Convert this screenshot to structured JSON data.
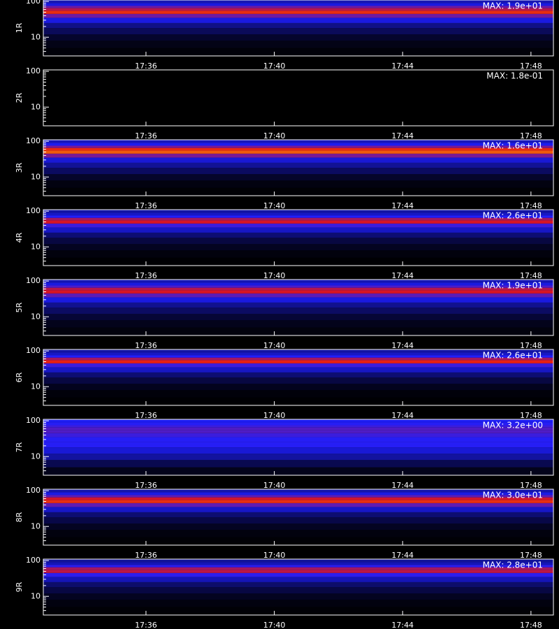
{
  "chart_data": [
    {
      "type": "heatmap",
      "ylabel": "1R",
      "max": {
        "value": 19,
        "label": "MAX: 1.9e+01"
      },
      "log_y": true,
      "bins": [
        3,
        5,
        8,
        12,
        18,
        25,
        35,
        45,
        55,
        65,
        75,
        90,
        110
      ],
      "counts": [
        0.2,
        0.5,
        1,
        2,
        3,
        5,
        8,
        12,
        10,
        8,
        5,
        4
      ],
      "ylim": [
        3,
        110
      ],
      "yticks": [
        10,
        100
      ],
      "yminorticks": [
        4,
        5,
        6,
        7,
        8,
        9,
        20,
        30,
        40,
        50,
        60,
        70,
        80,
        90
      ],
      "xlim": [
        1052.8,
        1068.7
      ],
      "xticks": [
        {
          "value": 1056,
          "label": "17:36"
        },
        {
          "value": 1060,
          "label": "17:40"
        },
        {
          "value": 1064,
          "label": "17:44"
        },
        {
          "value": 1068,
          "label": "17:48"
        }
      ]
    },
    {
      "type": "heatmap",
      "ylabel": "2R",
      "max": {
        "value": 0.18,
        "label": "MAX: 1.8e-01"
      },
      "log_y": true,
      "bins": [
        3,
        5,
        8,
        12,
        18,
        25,
        35,
        45,
        55,
        65,
        75,
        90,
        110
      ],
      "counts": [
        0,
        0,
        0,
        0,
        0,
        0,
        0,
        0,
        0,
        0,
        0,
        0
      ],
      "ylim": [
        3,
        110
      ],
      "yticks": [
        10,
        100
      ],
      "yminorticks": [
        4,
        5,
        6,
        7,
        8,
        9,
        20,
        30,
        40,
        50,
        60,
        70,
        80,
        90
      ],
      "xlim": [
        1052.8,
        1068.7
      ],
      "xticks": [
        {
          "value": 1056,
          "label": "17:36"
        },
        {
          "value": 1060,
          "label": "17:40"
        },
        {
          "value": 1064,
          "label": "17:44"
        },
        {
          "value": 1068,
          "label": "17:48"
        }
      ]
    },
    {
      "type": "heatmap",
      "ylabel": "3R",
      "max": {
        "value": 16,
        "label": "MAX: 1.6e+01"
      },
      "log_y": true,
      "bins": [
        3,
        5,
        8,
        12,
        18,
        25,
        35,
        45,
        55,
        65,
        75,
        90,
        110
      ],
      "counts": [
        0.1,
        0.3,
        0.8,
        1.8,
        2.8,
        4,
        7,
        11,
        10,
        7,
        4.5,
        3.5
      ],
      "ylim": [
        3,
        110
      ],
      "yticks": [
        10,
        100
      ],
      "yminorticks": [
        4,
        5,
        6,
        7,
        8,
        9,
        20,
        30,
        40,
        50,
        60,
        70,
        80,
        90
      ],
      "xlim": [
        1052.8,
        1068.7
      ],
      "xticks": [
        {
          "value": 1056,
          "label": "17:36"
        },
        {
          "value": 1060,
          "label": "17:40"
        },
        {
          "value": 1064,
          "label": "17:44"
        },
        {
          "value": 1068,
          "label": "17:48"
        }
      ]
    },
    {
      "type": "heatmap",
      "ylabel": "4R",
      "max": {
        "value": 26,
        "label": "MAX: 2.6e+01"
      },
      "log_y": true,
      "bins": [
        3,
        5,
        8,
        12,
        18,
        25,
        35,
        45,
        55,
        65,
        75,
        90,
        110
      ],
      "counts": [
        0.1,
        0.4,
        1,
        2,
        3.5,
        6,
        9,
        15,
        13,
        8,
        6,
        5
      ],
      "ylim": [
        3,
        110
      ],
      "yticks": [
        10,
        100
      ],
      "yminorticks": [
        4,
        5,
        6,
        7,
        8,
        9,
        20,
        30,
        40,
        50,
        60,
        70,
        80,
        90
      ],
      "xlim": [
        1052.8,
        1068.7
      ],
      "xticks": [
        {
          "value": 1056,
          "label": "17:36"
        },
        {
          "value": 1060,
          "label": "17:40"
        },
        {
          "value": 1064,
          "label": "17:44"
        },
        {
          "value": 1068,
          "label": "17:48"
        }
      ]
    },
    {
      "type": "heatmap",
      "ylabel": "5R",
      "max": {
        "value": 19,
        "label": "MAX: 1.9e+01"
      },
      "log_y": true,
      "bins": [
        3,
        5,
        8,
        12,
        18,
        25,
        35,
        45,
        55,
        65,
        75,
        90,
        110
      ],
      "counts": [
        0.3,
        0.6,
        1.2,
        2.2,
        3.2,
        5,
        7.5,
        11,
        10,
        7,
        5,
        4
      ],
      "ylim": [
        3,
        110
      ],
      "yticks": [
        10,
        100
      ],
      "yminorticks": [
        4,
        5,
        6,
        7,
        8,
        9,
        20,
        30,
        40,
        50,
        60,
        70,
        80,
        90
      ],
      "xlim": [
        1052.8,
        1068.7
      ],
      "xticks": [
        {
          "value": 1056,
          "label": "17:36"
        },
        {
          "value": 1060,
          "label": "17:40"
        },
        {
          "value": 1064,
          "label": "17:44"
        },
        {
          "value": 1068,
          "label": "17:48"
        }
      ]
    },
    {
      "type": "heatmap",
      "ylabel": "6R",
      "max": {
        "value": 26,
        "label": "MAX: 2.6e+01"
      },
      "log_y": true,
      "bins": [
        3,
        5,
        8,
        12,
        18,
        25,
        35,
        45,
        55,
        65,
        75,
        90,
        110
      ],
      "counts": [
        0.1,
        0.3,
        0.9,
        2,
        3.5,
        6,
        9,
        16,
        13,
        8,
        6,
        5
      ],
      "ylim": [
        3,
        110
      ],
      "yticks": [
        10,
        100
      ],
      "yminorticks": [
        4,
        5,
        6,
        7,
        8,
        9,
        20,
        30,
        40,
        50,
        60,
        70,
        80,
        90
      ],
      "xlim": [
        1052.8,
        1068.7
      ],
      "xticks": [
        {
          "value": 1056,
          "label": "17:36"
        },
        {
          "value": 1060,
          "label": "17:40"
        },
        {
          "value": 1064,
          "label": "17:44"
        },
        {
          "value": 1068,
          "label": "17:48"
        }
      ]
    },
    {
      "type": "heatmap",
      "ylabel": "7R",
      "max": {
        "value": 3.2,
        "label": "MAX: 3.2e+00"
      },
      "log_y": true,
      "bins": [
        3,
        5,
        8,
        12,
        18,
        25,
        35,
        45,
        55,
        65,
        75,
        90,
        110
      ],
      "counts": [
        0.1,
        0.3,
        0.6,
        0.8,
        1,
        1,
        1.1,
        1.2,
        1.2,
        1.1,
        1,
        0.9
      ],
      "ylim": [
        3,
        110
      ],
      "yticks": [
        10,
        100
      ],
      "yminorticks": [
        4,
        5,
        6,
        7,
        8,
        9,
        20,
        30,
        40,
        50,
        60,
        70,
        80,
        90
      ],
      "xlim": [
        1052.8,
        1068.7
      ],
      "xticks": [
        {
          "value": 1056,
          "label": "17:36"
        },
        {
          "value": 1060,
          "label": "17:40"
        },
        {
          "value": 1064,
          "label": "17:44"
        },
        {
          "value": 1068,
          "label": "17:48"
        }
      ]
    },
    {
      "type": "heatmap",
      "ylabel": "8R",
      "max": {
        "value": 30,
        "label": "MAX: 3.0e+01"
      },
      "log_y": true,
      "bins": [
        3,
        5,
        8,
        12,
        18,
        25,
        35,
        45,
        55,
        65,
        75,
        90,
        110
      ],
      "counts": [
        0.2,
        0.5,
        1.2,
        2.5,
        4,
        7,
        12,
        19,
        17,
        12,
        8,
        6
      ],
      "ylim": [
        3,
        110
      ],
      "yticks": [
        10,
        100
      ],
      "yminorticks": [
        4,
        5,
        6,
        7,
        8,
        9,
        20,
        30,
        40,
        50,
        60,
        70,
        80,
        90
      ],
      "xlim": [
        1052.8,
        1068.7
      ],
      "xticks": [
        {
          "value": 1056,
          "label": "17:36"
        },
        {
          "value": 1060,
          "label": "17:40"
        },
        {
          "value": 1064,
          "label": "17:44"
        },
        {
          "value": 1068,
          "label": "17:48"
        }
      ]
    },
    {
      "type": "heatmap",
      "ylabel": "9R",
      "max": {
        "value": 28,
        "label": "MAX: 2.8e+01"
      },
      "log_y": true,
      "bins": [
        3,
        5,
        8,
        12,
        18,
        25,
        35,
        45,
        55,
        65,
        75,
        90,
        110
      ],
      "counts": [
        0.2,
        0.5,
        1.1,
        2.2,
        3.5,
        6,
        9,
        15,
        14,
        9,
        6,
        5
      ],
      "ylim": [
        3,
        110
      ],
      "yticks": [
        10,
        100
      ],
      "yminorticks": [
        4,
        5,
        6,
        7,
        8,
        9,
        20,
        30,
        40,
        50,
        60,
        70,
        80,
        90
      ],
      "xlim": [
        1052.8,
        1068.7
      ],
      "xticks": [
        {
          "value": 1056,
          "label": "17:36"
        },
        {
          "value": 1060,
          "label": "17:40"
        },
        {
          "value": 1064,
          "label": "17:44"
        },
        {
          "value": 1068,
          "label": "17:48"
        }
      ]
    }
  ]
}
